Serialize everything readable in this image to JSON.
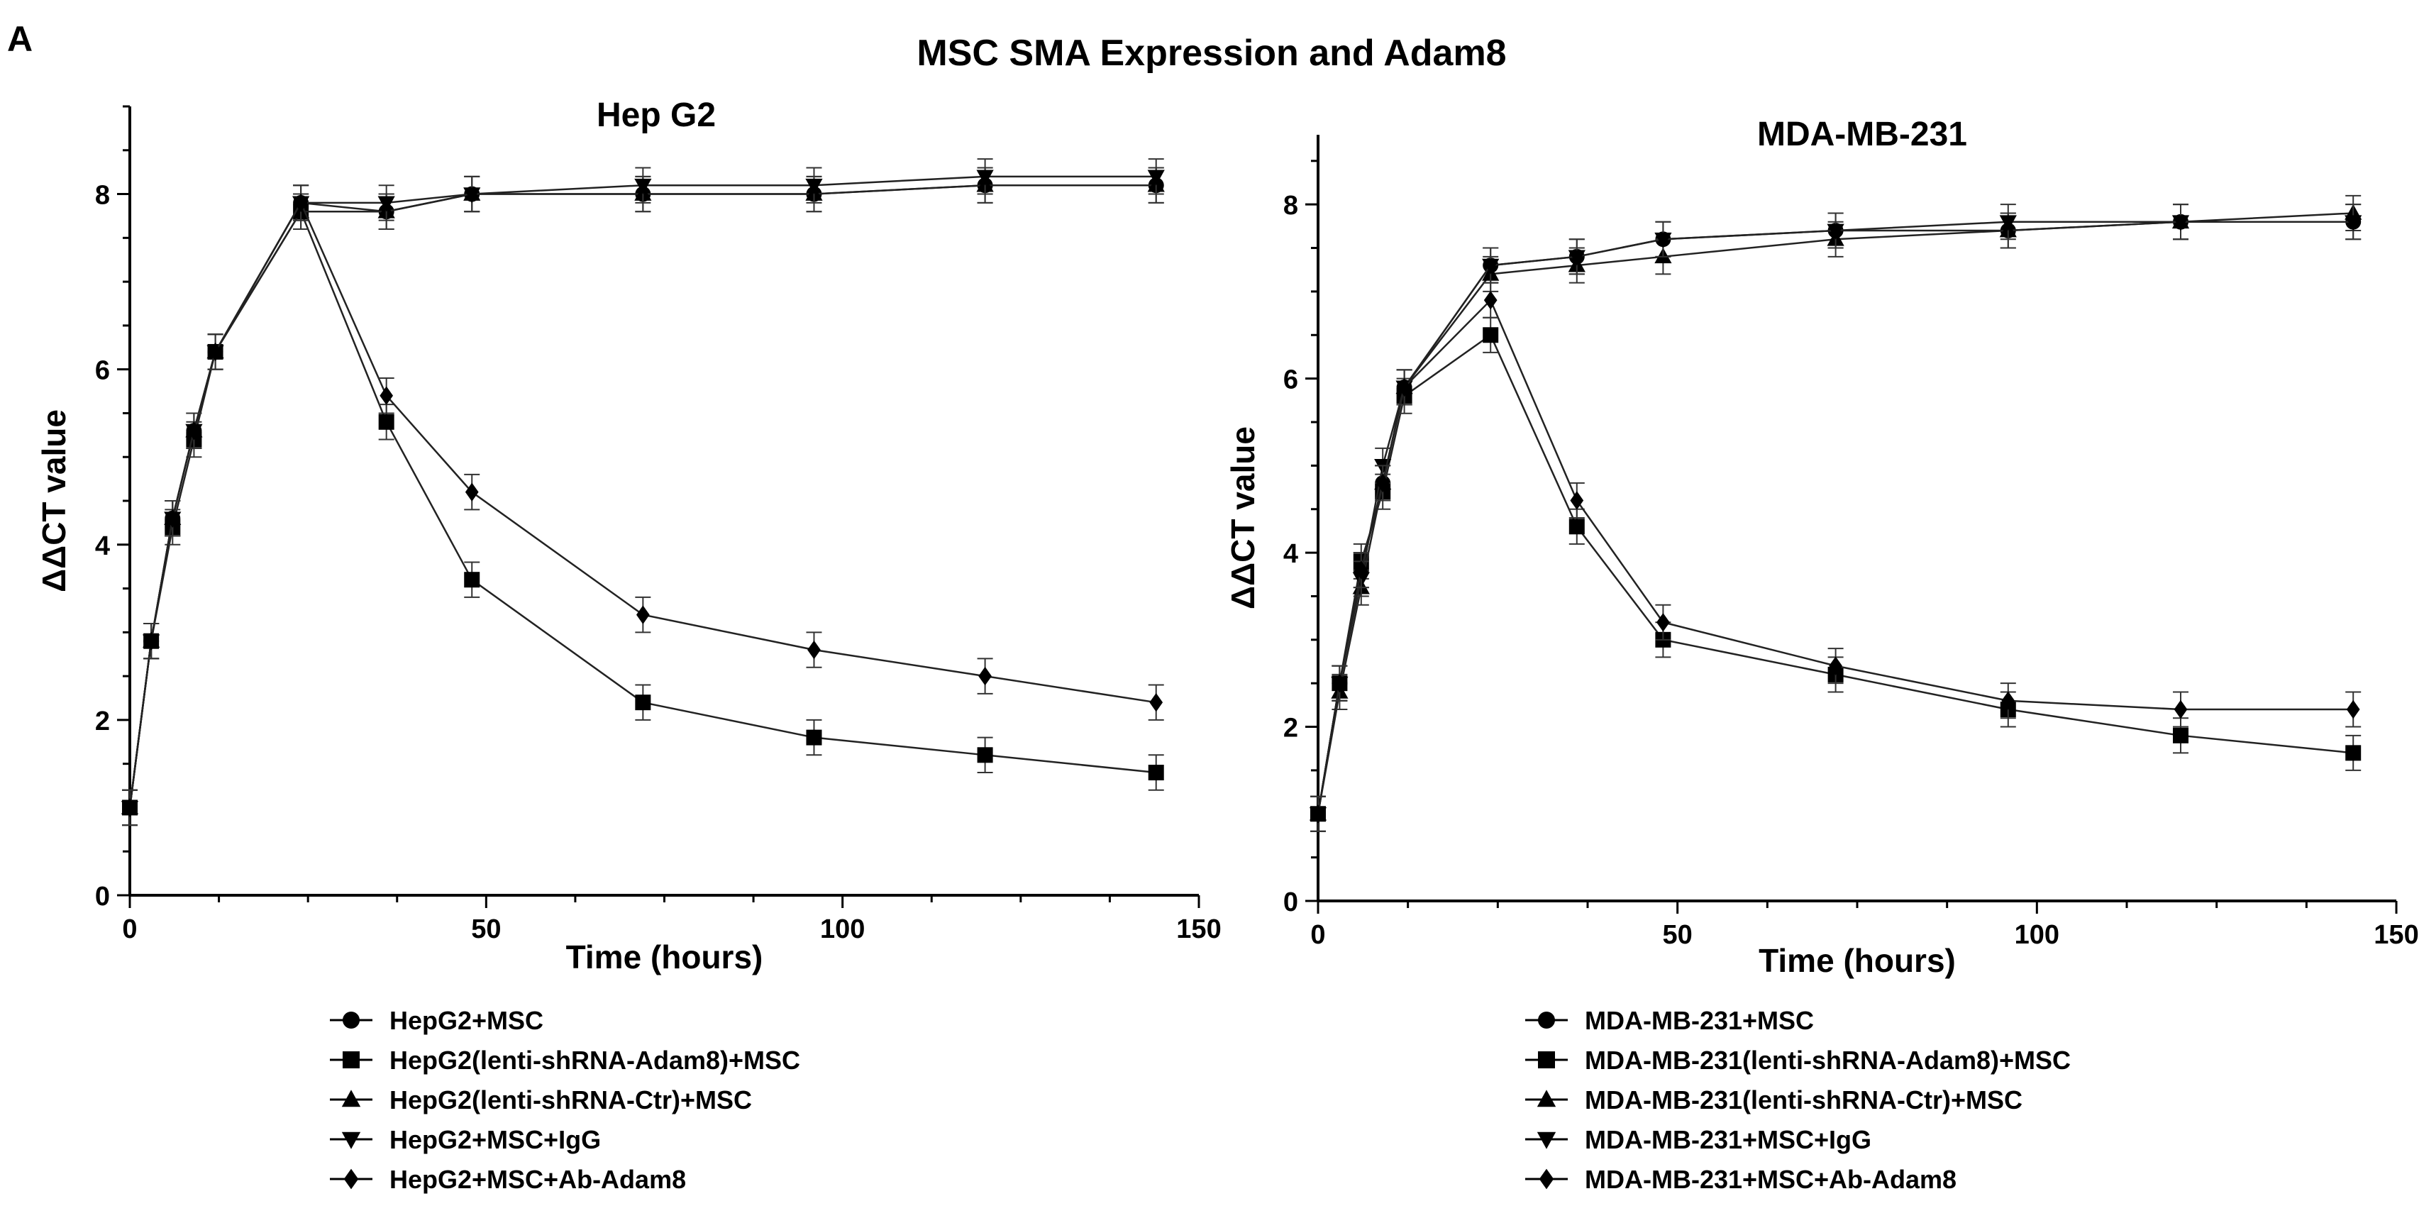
{
  "panel_label": "A",
  "figure_title": "MSC SMA Expression and Adam8",
  "chart_data": [
    {
      "type": "line",
      "title": "Hep G2",
      "xlabel": "Time (hours)",
      "ylabel": "ΔΔCT value",
      "xlim": [
        0,
        150
      ],
      "ylim": [
        0,
        9
      ],
      "xticks": [
        0,
        50,
        100,
        150
      ],
      "yticks": [
        0,
        2,
        4,
        6,
        8
      ],
      "grid": false,
      "legend_position": "bottom",
      "x": [
        0,
        3,
        6,
        9,
        12,
        24,
        36,
        48,
        72,
        96,
        120,
        144
      ],
      "series": [
        {
          "name": "HepG2+MSC",
          "marker": "circle",
          "values": [
            1.0,
            2.9,
            4.3,
            5.3,
            6.2,
            7.9,
            7.8,
            8.0,
            8.0,
            8.0,
            8.1,
            8.1
          ],
          "error": 0.2
        },
        {
          "name": "HepG2(lenti-shRNA-Adam8)+MSC",
          "marker": "square",
          "values": [
            1.0,
            2.9,
            4.2,
            5.2,
            6.2,
            7.8,
            5.4,
            3.6,
            2.2,
            1.8,
            1.6,
            1.4
          ],
          "error": 0.2
        },
        {
          "name": "HepG2(lenti-shRNA-Ctr)+MSC",
          "marker": "triangle-up",
          "values": [
            1.0,
            2.9,
            4.3,
            5.3,
            6.2,
            7.8,
            7.8,
            8.0,
            8.0,
            8.0,
            8.1,
            8.1
          ],
          "error": 0.2
        },
        {
          "name": "HepG2+MSC+IgG",
          "marker": "triangle-down",
          "values": [
            1.0,
            2.9,
            4.3,
            5.3,
            6.2,
            7.9,
            7.9,
            8.0,
            8.1,
            8.1,
            8.2,
            8.2
          ],
          "error": 0.2
        },
        {
          "name": "HepG2+MSC+Ab-Adam8",
          "marker": "diamond",
          "values": [
            1.0,
            2.9,
            4.3,
            5.3,
            6.2,
            7.9,
            5.7,
            4.6,
            3.2,
            2.8,
            2.5,
            2.2
          ],
          "error": 0.2
        }
      ]
    },
    {
      "type": "line",
      "title": "MDA-MB-231",
      "xlabel": "Time (hours)",
      "ylabel": "ΔΔCT value",
      "xlim": [
        0,
        150
      ],
      "ylim": [
        0,
        8.8
      ],
      "xticks": [
        0,
        50,
        100,
        150
      ],
      "yticks": [
        0,
        2,
        4,
        6,
        8
      ],
      "grid": false,
      "legend_position": "bottom",
      "x": [
        0,
        3,
        6,
        9,
        12,
        24,
        36,
        48,
        72,
        96,
        120,
        144
      ],
      "series": [
        {
          "name": "MDA-MB-231+MSC",
          "marker": "circle",
          "values": [
            1.0,
            2.5,
            3.8,
            4.8,
            5.9,
            7.3,
            7.4,
            7.6,
            7.7,
            7.7,
            7.8,
            7.8
          ],
          "error": 0.2
        },
        {
          "name": "MDA-MB-231(lenti-shRNA-Adam8)+MSC",
          "marker": "square",
          "values": [
            1.0,
            2.5,
            3.9,
            4.7,
            5.8,
            6.5,
            4.3,
            3.0,
            2.6,
            2.2,
            1.9,
            1.7
          ],
          "error": 0.2
        },
        {
          "name": "MDA-MB-231(lenti-shRNA-Ctr)+MSC",
          "marker": "triangle-up",
          "values": [
            1.0,
            2.4,
            3.6,
            4.8,
            5.9,
            7.2,
            7.3,
            7.4,
            7.6,
            7.7,
            7.8,
            7.9
          ],
          "error": 0.2
        },
        {
          "name": "MDA-MB-231+MSC+IgG",
          "marker": "triangle-down",
          "values": [
            1.0,
            2.5,
            3.7,
            5.0,
            5.9,
            7.3,
            7.4,
            7.6,
            7.7,
            7.8,
            7.8,
            7.8
          ],
          "error": 0.2
        },
        {
          "name": "MDA-MB-231+MSC+Ab-Adam8",
          "marker": "diamond",
          "values": [
            1.0,
            2.5,
            3.8,
            4.8,
            5.9,
            6.9,
            4.6,
            3.2,
            2.7,
            2.3,
            2.2,
            2.2
          ],
          "error": 0.2
        }
      ]
    }
  ]
}
